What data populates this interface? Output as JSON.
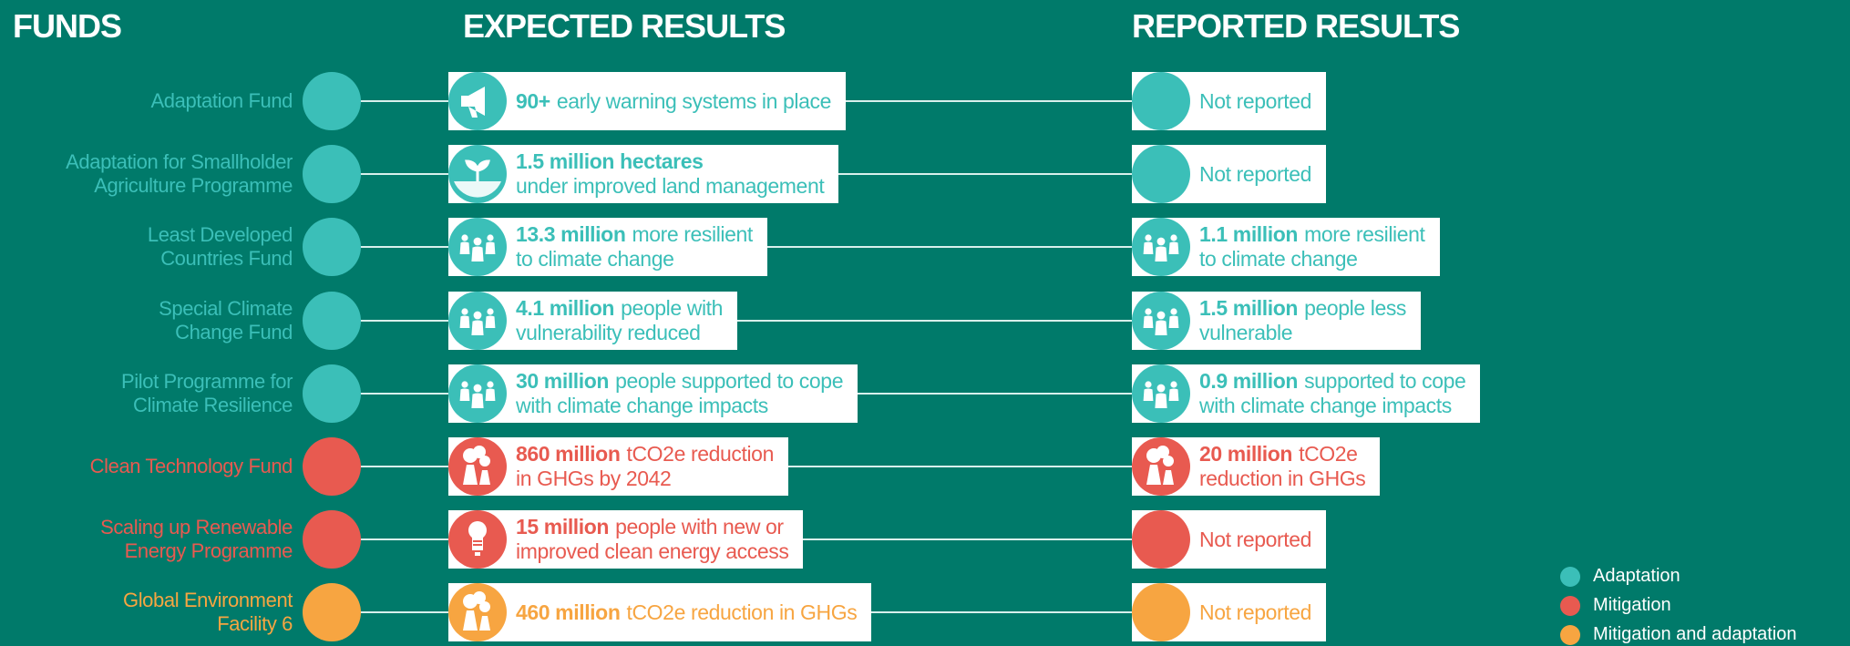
{
  "header": {
    "funds": "FUNDS",
    "expected": "EXPECTED RESULTS",
    "reported": "REPORTED RESULTS"
  },
  "rows": [
    {
      "fund": [
        "Adaptation Fund"
      ],
      "color": "#3bbfb8",
      "expected": [
        [
          {
            "text": "90+",
            "bold": true
          },
          {
            "text": "early warning systems in place"
          }
        ]
      ],
      "reported": [
        [
          {
            "text": "Not reported"
          }
        ]
      ]
    },
    {
      "fund": [
        "Adaptation for Smallholder",
        "Agriculture Programme"
      ],
      "color": "#3bbfb8",
      "expected": [
        [
          {
            "text": "1.5 million hectares",
            "bold": true
          }
        ],
        [
          {
            "text": "under improved land management"
          }
        ]
      ],
      "reported": [
        [
          {
            "text": "Not reported"
          }
        ]
      ]
    },
    {
      "fund": [
        "Least Developed",
        "Countries Fund"
      ],
      "color": "#3bbfb8",
      "expected": [
        [
          {
            "text": "13.3 million",
            "bold": true
          },
          {
            "text": "more resilient"
          }
        ],
        [
          {
            "text": "to climate change"
          }
        ]
      ],
      "reported": [
        [
          {
            "text": "1.1 million",
            "bold": true
          },
          {
            "text": "more resilient"
          }
        ],
        [
          {
            "text": "to climate change"
          }
        ]
      ]
    },
    {
      "fund": [
        "Special Climate",
        "Change Fund"
      ],
      "color": "#3bbfb8",
      "expected": [
        [
          {
            "text": "4.1 million",
            "bold": true
          },
          {
            "text": "people with"
          }
        ],
        [
          {
            "text": "vulnerability reduced"
          }
        ]
      ],
      "reported": [
        [
          {
            "text": "1.5 million",
            "bold": true
          },
          {
            "text": "people less"
          }
        ],
        [
          {
            "text": "vulnerable"
          }
        ]
      ]
    },
    {
      "fund": [
        "Pilot Programme for",
        "Climate Resilience"
      ],
      "color": "#3bbfb8",
      "expected": [
        [
          {
            "text": "30 million",
            "bold": true
          },
          {
            "text": "people supported to cope"
          }
        ],
        [
          {
            "text": "with climate change impacts"
          }
        ]
      ],
      "reported": [
        [
          {
            "text": "0.9 million",
            "bold": true
          },
          {
            "text": "supported to cope"
          }
        ],
        [
          {
            "text": "with climate change impacts"
          }
        ]
      ]
    },
    {
      "fund": [
        "Clean Technology Fund"
      ],
      "color": "#e85a50",
      "expected": [
        [
          {
            "text": "860 million",
            "bold": true
          },
          {
            "text": "tCO2e reduction"
          }
        ],
        [
          {
            "text": "in GHGs by 2042"
          }
        ]
      ],
      "reported": [
        [
          {
            "text": "20 million",
            "bold": true
          },
          {
            "text": "tCO2e"
          }
        ],
        [
          {
            "text": "reduction in GHGs"
          }
        ]
      ]
    },
    {
      "fund": [
        "Scaling up Renewable",
        "Energy Programme"
      ],
      "color": "#e85a50",
      "expected": [
        [
          {
            "text": "15 million",
            "bold": true
          },
          {
            "text": "people with new or"
          }
        ],
        [
          {
            "text": "improved clean energy access"
          }
        ]
      ],
      "reported": [
        [
          {
            "text": "Not reported"
          }
        ]
      ]
    },
    {
      "fund": [
        "Global Environment",
        "Facility 6"
      ],
      "color": "#f7a541",
      "expected": [
        [
          {
            "text": "460 million",
            "bold": true
          },
          {
            "text": "tCO2e reduction in GHGs"
          }
        ]
      ],
      "reported": [
        [
          {
            "text": "Not reported"
          }
        ]
      ]
    }
  ],
  "legend": [
    {
      "label": "Adaptation",
      "color": "#3bbfb8"
    },
    {
      "label": "Mitigation",
      "color": "#e85a50"
    },
    {
      "label": "Mitigation and adaptation",
      "color": "#f7a541"
    }
  ]
}
